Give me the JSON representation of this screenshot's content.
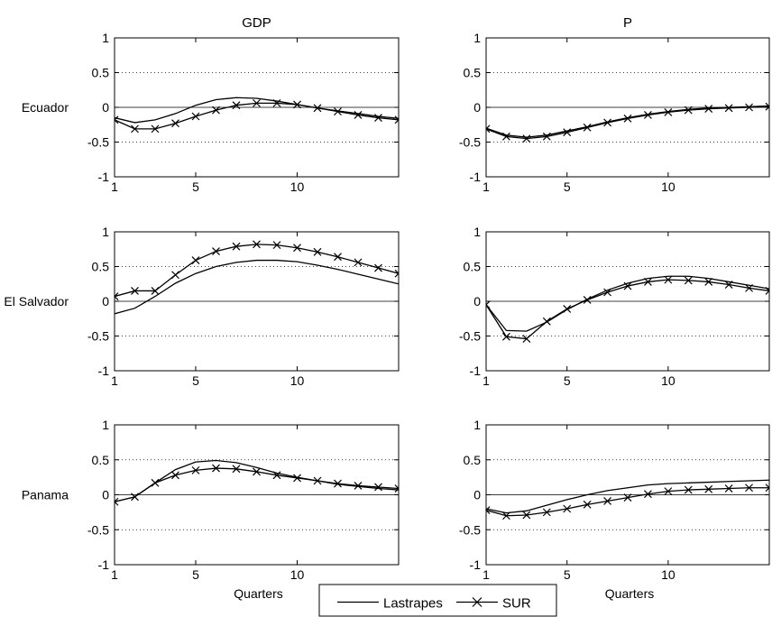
{
  "chart_data": {
    "type": "line",
    "column_titles": [
      "GDP",
      "P"
    ],
    "row_labels": [
      "Ecuador",
      "El Salvador",
      "Panama"
    ],
    "xlabel": "Quarters",
    "x": [
      1,
      2,
      3,
      4,
      5,
      6,
      7,
      8,
      9,
      10,
      11,
      12,
      13,
      14,
      15
    ],
    "xlim": [
      1,
      15
    ],
    "xticks": [
      1,
      5,
      10
    ],
    "ylim": [
      -1,
      1
    ],
    "yticks": [
      1,
      0.5,
      0,
      -0.5,
      -1
    ],
    "ytick_labels": [
      "1",
      "0.5",
      "0",
      "-0.5",
      "-1"
    ],
    "grid": "dotted",
    "legend": {
      "placement": "bottom-center",
      "entries": [
        {
          "name": "Lastrapes",
          "marker": "none"
        },
        {
          "name": "SUR",
          "marker": "x"
        }
      ]
    },
    "panels": [
      {
        "row": "Ecuador",
        "column": "GDP",
        "series": [
          {
            "name": "Lastrapes",
            "values": [
              -0.15,
              -0.22,
              -0.18,
              -0.09,
              0.03,
              0.11,
              0.14,
              0.13,
              0.09,
              0.04,
              -0.01,
              -0.05,
              -0.09,
              -0.13,
              -0.16
            ]
          },
          {
            "name": "SUR",
            "values": [
              -0.18,
              -0.31,
              -0.31,
              -0.23,
              -0.13,
              -0.04,
              0.03,
              0.06,
              0.06,
              0.04,
              -0.01,
              -0.06,
              -0.11,
              -0.15,
              -0.18
            ]
          }
        ]
      },
      {
        "row": "Ecuador",
        "column": "P",
        "series": [
          {
            "name": "Lastrapes",
            "values": [
              -0.3,
              -0.4,
              -0.43,
              -0.4,
              -0.34,
              -0.28,
              -0.21,
              -0.15,
              -0.1,
              -0.06,
              -0.03,
              -0.01,
              0.0,
              0.01,
              0.02
            ]
          },
          {
            "name": "SUR",
            "values": [
              -0.31,
              -0.42,
              -0.45,
              -0.42,
              -0.36,
              -0.29,
              -0.22,
              -0.16,
              -0.11,
              -0.07,
              -0.04,
              -0.02,
              -0.01,
              0.0,
              0.01
            ]
          }
        ]
      },
      {
        "row": "El Salvador",
        "column": "GDP",
        "series": [
          {
            "name": "Lastrapes",
            "values": [
              -0.18,
              -0.1,
              0.07,
              0.26,
              0.4,
              0.5,
              0.56,
              0.59,
              0.59,
              0.57,
              0.52,
              0.46,
              0.39,
              0.32,
              0.25
            ]
          },
          {
            "name": "SUR",
            "values": [
              0.07,
              0.15,
              0.15,
              0.38,
              0.59,
              0.72,
              0.79,
              0.82,
              0.81,
              0.77,
              0.71,
              0.64,
              0.56,
              0.48,
              0.4
            ]
          }
        ]
      },
      {
        "row": "El Salvador",
        "column": "P",
        "series": [
          {
            "name": "Lastrapes",
            "values": [
              -0.05,
              -0.42,
              -0.43,
              -0.3,
              -0.12,
              0.03,
              0.16,
              0.26,
              0.33,
              0.36,
              0.36,
              0.33,
              0.28,
              0.23,
              0.18
            ]
          },
          {
            "name": "SUR",
            "values": [
              -0.05,
              -0.51,
              -0.54,
              -0.29,
              -0.11,
              0.02,
              0.13,
              0.22,
              0.28,
              0.31,
              0.3,
              0.28,
              0.24,
              0.19,
              0.15
            ]
          }
        ]
      },
      {
        "row": "Panama",
        "column": "GDP",
        "series": [
          {
            "name": "Lastrapes",
            "values": [
              -0.1,
              -0.03,
              0.17,
              0.36,
              0.47,
              0.49,
              0.46,
              0.39,
              0.31,
              0.25,
              0.2,
              0.15,
              0.12,
              0.09,
              0.07
            ]
          },
          {
            "name": "SUR",
            "values": [
              -0.1,
              -0.03,
              0.17,
              0.28,
              0.35,
              0.38,
              0.37,
              0.33,
              0.28,
              0.24,
              0.2,
              0.16,
              0.13,
              0.11,
              0.09
            ]
          }
        ]
      },
      {
        "row": "Panama",
        "column": "P",
        "series": [
          {
            "name": "Lastrapes",
            "values": [
              -0.2,
              -0.26,
              -0.23,
              -0.15,
              -0.07,
              0.0,
              0.06,
              0.1,
              0.14,
              0.16,
              0.17,
              0.18,
              0.19,
              0.2,
              0.21
            ]
          },
          {
            "name": "SUR",
            "values": [
              -0.22,
              -0.3,
              -0.29,
              -0.25,
              -0.2,
              -0.14,
              -0.09,
              -0.04,
              0.01,
              0.05,
              0.07,
              0.08,
              0.09,
              0.1,
              0.1
            ]
          }
        ]
      }
    ]
  }
}
